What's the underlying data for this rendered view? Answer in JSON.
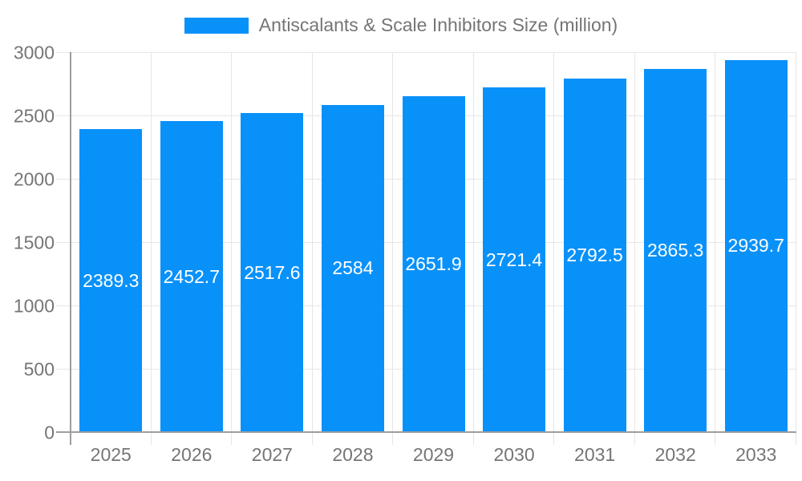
{
  "legend": {
    "label": "Antiscalants & Scale Inhibitors Size (million)"
  },
  "chart_data": {
    "type": "bar",
    "title": "Antiscalants & Scale Inhibitors Size (million)",
    "legend_position": "top",
    "categories": [
      "2025",
      "2026",
      "2027",
      "2028",
      "2029",
      "2030",
      "2031",
      "2032",
      "2033"
    ],
    "series": [
      {
        "name": "Antiscalants & Scale Inhibitors Size (million)",
        "values": [
          2389.3,
          2452.7,
          2517.6,
          2584,
          2651.9,
          2721.4,
          2792.5,
          2865.3,
          2939.7
        ]
      }
    ],
    "xlabel": "",
    "ylabel": "",
    "ylim": [
      0,
      3000
    ],
    "ytick_interval": 500,
    "yticks": [
      0,
      500,
      1000,
      1500,
      2000,
      2500,
      3000
    ],
    "grid": true,
    "bar_labels_inside": true,
    "colors": {
      "bar": "#0991fa",
      "bar_label": "#ffffff",
      "axis": "#9e9e9e",
      "gridline": "#e6e6e6",
      "tick_label": "#757575",
      "legend_text": "#757575",
      "background": "#ffffff"
    }
  }
}
